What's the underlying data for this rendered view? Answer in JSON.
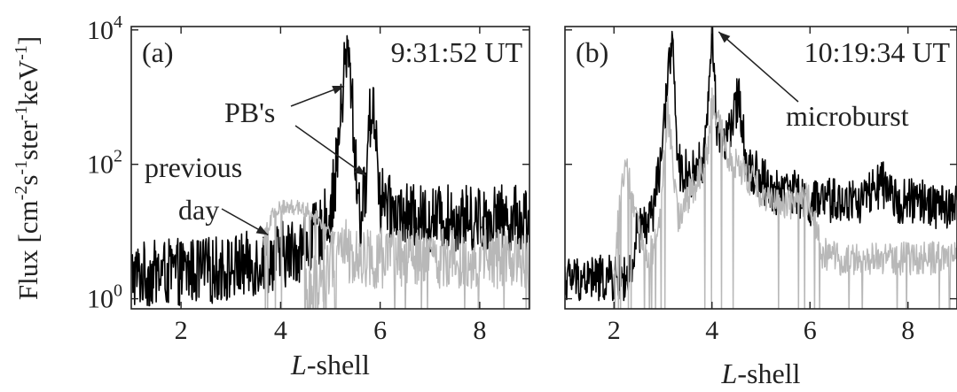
{
  "figure": {
    "ylabel_parts": [
      "Flux [cm",
      "-2",
      "s",
      "-1",
      "ster",
      "-1",
      "keV",
      "-1",
      "]"
    ],
    "xlabel": {
      "italic": "L",
      "rest": "-shell"
    },
    "ytick_labels": [
      {
        "base": "10",
        "exp": "0"
      },
      {
        "base": "10",
        "exp": "2"
      },
      {
        "base": "10",
        "exp": "4"
      }
    ]
  },
  "chart_data": [
    {
      "type": "line",
      "panel_label": "(a)",
      "time_label": "9:31:52 UT",
      "xlim": [
        1,
        9
      ],
      "ylim_log10": [
        -0.15,
        4.05
      ],
      "y_scale": "log",
      "xticks": [
        2,
        4,
        6,
        8
      ],
      "xtick_labels": [
        "2",
        "4",
        "6",
        "8"
      ],
      "annotations": [
        {
          "text": "PB's",
          "targets": [
            [
              5.35,
              3.3
            ],
            [
              5.75,
              1.7
            ]
          ]
        },
        {
          "text": "previous",
          "line": 1
        },
        {
          "text": "day",
          "line": 2,
          "target": [
            3.75,
            0.95
          ]
        }
      ],
      "series": [
        {
          "color": "#000000",
          "noise": 0.5,
          "x": [
            1.0,
            2.0,
            3.0,
            3.6,
            4.0,
            4.4,
            4.8,
            5.0,
            5.1,
            5.2,
            5.28,
            5.35,
            5.42,
            5.5,
            5.6,
            5.7,
            5.78,
            5.85,
            5.92,
            6.0,
            6.08,
            6.15,
            6.3,
            6.6,
            7.0,
            8.0,
            9.0
          ],
          "y": [
            0.35,
            0.4,
            0.45,
            0.55,
            0.65,
            0.75,
            1.0,
            1.3,
            1.8,
            2.6,
            3.4,
            3.65,
            3.2,
            2.0,
            1.2,
            1.6,
            2.6,
            2.9,
            2.5,
            1.4,
            1.5,
            1.35,
            1.3,
            1.2,
            1.2,
            1.2,
            1.2
          ]
        },
        {
          "color": "#b8b8b8",
          "noise": 0.45,
          "x": [
            4.5,
            4.7,
            4.9,
            5.0,
            5.1,
            5.2,
            5.3,
            5.4,
            5.6,
            5.8,
            6.0,
            6.5,
            7.0,
            8.0,
            9.0
          ],
          "y": [
            0.0,
            0.25,
            0.35,
            0.5,
            0.7,
            0.9,
            0.75,
            0.6,
            0.65,
            0.6,
            0.6,
            0.6,
            0.6,
            0.6,
            0.6
          ]
        },
        {
          "color": "#b8b8b8",
          "noise": 0.12,
          "x": [
            3.65,
            3.8,
            4.0,
            4.2,
            4.4,
            4.6,
            4.8,
            5.0,
            5.1
          ],
          "y": [
            0.85,
            1.2,
            1.35,
            1.38,
            1.35,
            1.3,
            1.15,
            0.95,
            0.9
          ]
        }
      ]
    },
    {
      "type": "line",
      "panel_label": "(b)",
      "time_label": "10:19:34 UT",
      "xlim": [
        1,
        9
      ],
      "ylim_log10": [
        -0.15,
        4.05
      ],
      "y_scale": "log",
      "xticks": [
        2,
        4,
        6,
        8
      ],
      "xtick_labels": [
        "2",
        "4",
        "6",
        "8"
      ],
      "annotations": [
        {
          "text": "microburst",
          "target": [
            4.1,
            4.05
          ]
        }
      ],
      "series": [
        {
          "color": "#000000",
          "noise": 0.35,
          "x": [
            1.0,
            1.5,
            2.0,
            2.4,
            2.45,
            2.6,
            2.8,
            3.0,
            3.12,
            3.2,
            3.28,
            3.4,
            3.6,
            3.85,
            4.0,
            4.1,
            4.2,
            4.4,
            4.55,
            4.7,
            5.0,
            5.3,
            5.5,
            5.8,
            6.0,
            6.3,
            7.0,
            7.5,
            7.6,
            8.0,
            9.0
          ],
          "y": [
            0.3,
            0.3,
            0.3,
            0.3,
            0.95,
            1.05,
            1.3,
            2.3,
            3.5,
            4.0,
            2.0,
            1.9,
            1.85,
            2.1,
            4.0,
            2.6,
            2.3,
            2.5,
            3.1,
            2.0,
            1.8,
            1.55,
            1.7,
            1.5,
            1.4,
            1.45,
            1.45,
            1.7,
            1.5,
            1.45,
            1.35
          ]
        },
        {
          "color": "#b8b8b8",
          "noise": 0.25,
          "x": [
            2.0,
            2.15,
            2.25,
            2.35,
            2.5,
            2.7,
            2.9,
            3.1,
            3.3,
            3.6,
            3.9,
            4.0,
            4.3,
            4.6,
            5.0,
            5.5,
            6.0,
            6.15,
            6.25,
            6.5,
            7.0,
            8.0,
            9.0
          ],
          "y": [
            0.3,
            1.75,
            1.9,
            1.6,
            1.0,
            0.6,
            0.9,
            2.8,
            1.2,
            1.6,
            2.1,
            2.9,
            2.2,
            1.9,
            1.6,
            1.4,
            1.5,
            0.9,
            0.7,
            0.6,
            0.6,
            0.6,
            0.6
          ]
        }
      ]
    }
  ]
}
